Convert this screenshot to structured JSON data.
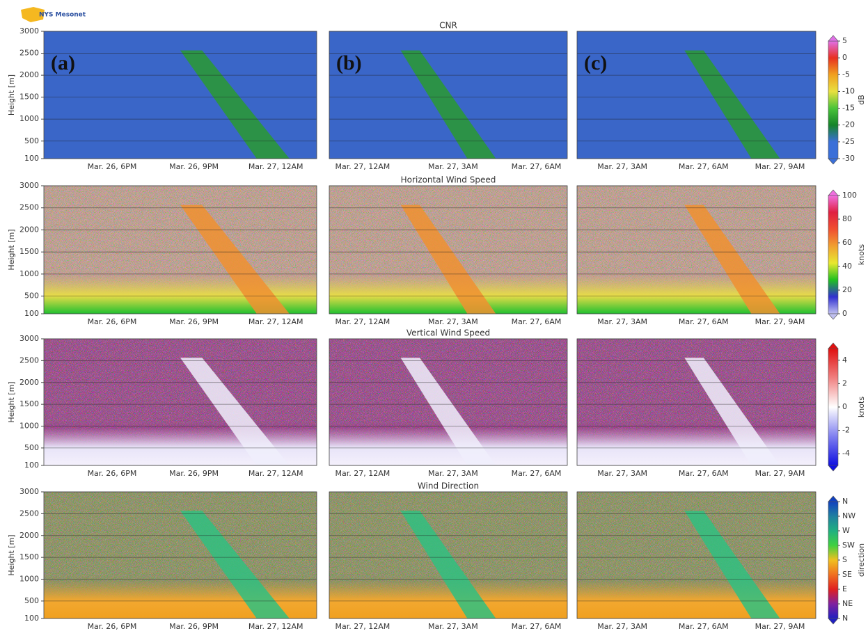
{
  "logo": "NYS Mesonet",
  "columns": [
    {
      "panel_label": "(a)",
      "xticks": [
        "Mar. 26, 6PM",
        "Mar. 26, 9PM",
        "Mar. 27, 12AM"
      ]
    },
    {
      "panel_label": "(b)",
      "xticks": [
        "Mar. 27, 12AM",
        "Mar. 27, 3AM",
        "Mar. 27, 6AM"
      ]
    },
    {
      "panel_label": "(c)",
      "xticks": [
        "Mar. 27, 3AM",
        "Mar. 27, 6AM",
        "Mar. 27, 9AM"
      ]
    }
  ],
  "chart_data": [
    {
      "type": "heatmap",
      "title": "CNR",
      "y_label": "Height [m]",
      "ylim": [
        100,
        3000
      ],
      "yticks": [
        100,
        500,
        1000,
        1500,
        2000,
        2500,
        3000
      ],
      "grid": true,
      "colorbar": {
        "label": "dB",
        "lim": [
          -30,
          5
        ],
        "ticks": [
          5,
          0,
          -5,
          -10,
          -15,
          -20,
          -25,
          -30
        ],
        "colors": [
          "#3a6fd8",
          "#3a6fd8",
          "#16842a",
          "#4ac43a",
          "#e8e040",
          "#f0a020",
          "#e83020",
          "#e070e8"
        ]
      }
    },
    {
      "type": "heatmap",
      "title": "Horizontal Wind Speed",
      "y_label": "Height [m]",
      "ylim": [
        100,
        3000
      ],
      "yticks": [
        100,
        500,
        1000,
        1500,
        2000,
        2500,
        3000
      ],
      "grid": true,
      "colorbar": {
        "label": "knots",
        "lim": [
          0,
          100
        ],
        "ticks": [
          100,
          80,
          60,
          40,
          20,
          0
        ],
        "colors": [
          "#c0c0f0",
          "#3030d0",
          "#20c020",
          "#e8e830",
          "#f0a030",
          "#f05030",
          "#e02040",
          "#f070e0"
        ]
      }
    },
    {
      "type": "heatmap",
      "title": "Vertical Wind Speed",
      "y_label": "Height [m]",
      "ylim": [
        100,
        3000
      ],
      "yticks": [
        100,
        500,
        1000,
        1500,
        2000,
        2500,
        3000
      ],
      "grid": true,
      "colorbar": {
        "label": "knots",
        "lim": [
          -5,
          5
        ],
        "ticks": [
          4,
          2,
          0,
          -2,
          -4
        ],
        "colors": [
          "#1010e0",
          "#8080f0",
          "#ffffff",
          "#f08080",
          "#e01010"
        ]
      }
    },
    {
      "type": "heatmap",
      "title": "Wind Direction",
      "y_label": "Height [m]",
      "ylim": [
        100,
        3000
      ],
      "yticks": [
        100,
        500,
        1000,
        1500,
        2000,
        2500,
        3000
      ],
      "grid": true,
      "colorbar": {
        "label": "direction",
        "lim": [
          0,
          360
        ],
        "ticks": [
          {
            "value": 360,
            "label": "N"
          },
          {
            "value": 315,
            "label": "NW"
          },
          {
            "value": 270,
            "label": "W"
          },
          {
            "value": 225,
            "label": "SW"
          },
          {
            "value": 180,
            "label": "S"
          },
          {
            "value": 135,
            "label": "SE"
          },
          {
            "value": 90,
            "label": "E"
          },
          {
            "value": 45,
            "label": "NE"
          },
          {
            "value": 0,
            "label": "N"
          }
        ],
        "colors": [
          "#2020c0",
          "#8020a0",
          "#e02020",
          "#f07020",
          "#f0c020",
          "#40d040",
          "#20b080",
          "#2080a0",
          "#1040c0"
        ]
      }
    }
  ]
}
